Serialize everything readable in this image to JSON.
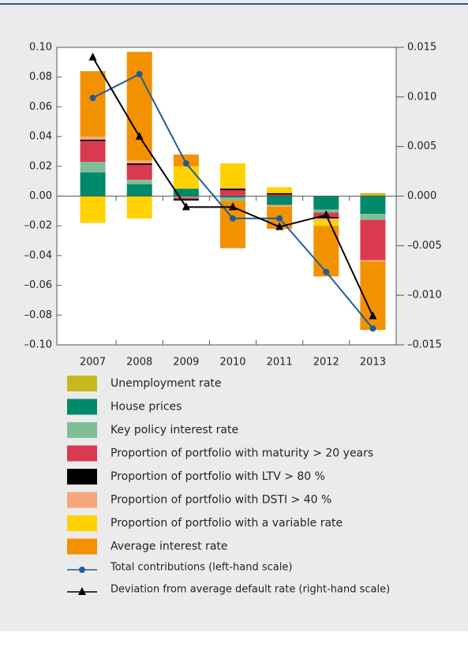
{
  "chart_data": {
    "type": "bar",
    "stacked": true,
    "categories": [
      "2007",
      "2008",
      "2009",
      "2010",
      "2011",
      "2012",
      "2013"
    ],
    "series": [
      {
        "name": "Unemployment rate",
        "color": "#c8b820",
        "values": [
          0,
          0,
          0,
          0,
          0,
          0,
          0.002
        ]
      },
      {
        "name": "House prices",
        "color": "#00896b",
        "values": [
          0.016,
          0.008,
          0.005,
          -0.001,
          -0.006,
          -0.009,
          -0.012
        ]
      },
      {
        "name": "Key policy interest rate",
        "color": "#7fbf96",
        "values": [
          0.007,
          0.003,
          -0.001,
          -0.002,
          0,
          -0.002,
          -0.004
        ]
      },
      {
        "name": "Proportion of portfolio with maturity > 20 years",
        "color": "#d93a4f",
        "values": [
          0.014,
          0.01,
          -0.001,
          0.004,
          0.001,
          -0.003,
          -0.027
        ]
      },
      {
        "name": "Proportion of portfolio with LTV > 80 %",
        "color": "#000000",
        "values": [
          0.001,
          0.001,
          -0.001,
          0.001,
          0.001,
          -0.001,
          0
        ]
      },
      {
        "name": "Proportion of portfolio with DSTI > 40 %",
        "color": "#f7a77a",
        "values": [
          0.002,
          0.002,
          0,
          0.001,
          -0.001,
          -0.001,
          -0.001
        ]
      },
      {
        "name": "Proportion of portfolio with a variable rate",
        "color": "#ffd200",
        "values": [
          -0.018,
          -0.015,
          0.015,
          0.016,
          0.004,
          -0.004,
          0
        ]
      },
      {
        "name": "Average interest rate",
        "color": "#f39200",
        "values": [
          0.044,
          0.073,
          0.008,
          -0.032,
          -0.015,
          -0.034,
          -0.046
        ]
      },
      {
        "name": "Total contributions (left-hand scale)",
        "type": "line",
        "marker": "circle",
        "color": "#1f5c99",
        "values": [
          0.066,
          0.082,
          0.022,
          -0.015,
          -0.015,
          -0.051,
          -0.089
        ]
      },
      {
        "name": "Deviation from average default rate (right-hand scale)",
        "type": "line",
        "marker": "triangle",
        "axis": "y2",
        "color": "#000000",
        "values": [
          0.014,
          0.006,
          -0.0011,
          -0.0011,
          -0.0031,
          -0.0019,
          -0.0121
        ]
      }
    ],
    "ylim": [
      -0.1,
      0.1
    ],
    "yticks": [
      {
        "value": -0.1,
        "label": "–0.10"
      },
      {
        "value": -0.08,
        "label": "–0.08"
      },
      {
        "value": -0.06,
        "label": "–0.06"
      },
      {
        "value": -0.04,
        "label": "–0.04"
      },
      {
        "value": -0.02,
        "label": "–0.02"
      },
      {
        "value": 0,
        "label": "0.00"
      },
      {
        "value": 0.02,
        "label": "0.02"
      },
      {
        "value": 0.04,
        "label": "0.04"
      },
      {
        "value": 0.06,
        "label": "0.06"
      },
      {
        "value": 0.08,
        "label": "0.08"
      },
      {
        "value": 0.1,
        "label": "0.10"
      }
    ],
    "y2lim": [
      -0.015,
      0.015
    ],
    "y2ticks": [
      {
        "value": -0.015,
        "label": "–0.015"
      },
      {
        "value": -0.01,
        "label": "–0.010"
      },
      {
        "value": -0.005,
        "label": "–0.005"
      },
      {
        "value": 0,
        "label": "0.000"
      },
      {
        "value": 0.005,
        "label": "0.005"
      },
      {
        "value": 0.01,
        "label": "0.010"
      },
      {
        "value": 0.015,
        "label": "0.015"
      }
    ],
    "grid": false
  }
}
